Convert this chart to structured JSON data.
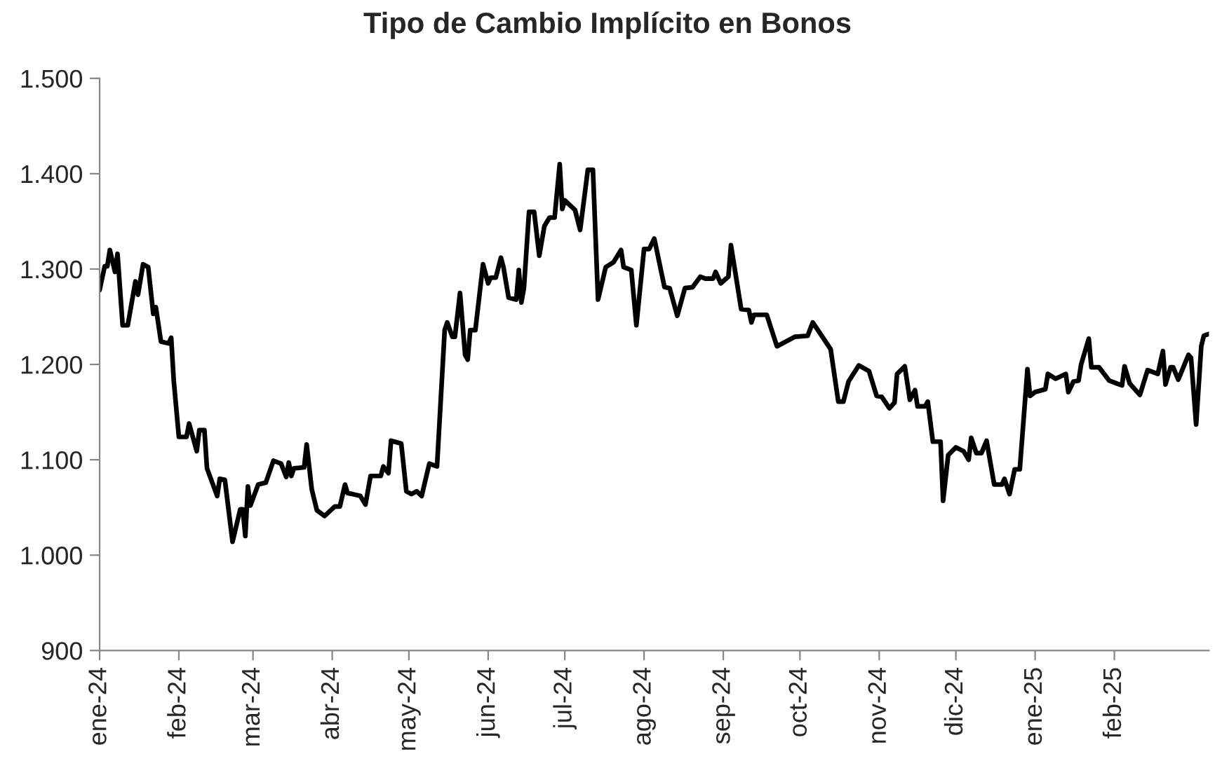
{
  "chart_data": {
    "type": "line",
    "title": "Tipo de Cambio Implícito en Bonos",
    "x": [
      "2024-01-01",
      "2024-01-03",
      "2024-01-04",
      "2024-01-05",
      "2024-01-07",
      "2024-01-08",
      "2024-01-10",
      "2024-01-12",
      "2024-01-15",
      "2024-01-16",
      "2024-01-18",
      "2024-01-20",
      "2024-01-22",
      "2024-01-23",
      "2024-01-25",
      "2024-01-28",
      "2024-01-29",
      "2024-01-30",
      "2024-02-01",
      "2024-02-04",
      "2024-02-05",
      "2024-02-08",
      "2024-02-09",
      "2024-02-11",
      "2024-02-12",
      "2024-02-16",
      "2024-02-17",
      "2024-02-19",
      "2024-02-22",
      "2024-02-25",
      "2024-02-26",
      "2024-02-27",
      "2024-02-28",
      "2024-02-29",
      "2024-03-03",
      "2024-03-06",
      "2024-03-09",
      "2024-03-12",
      "2024-03-14",
      "2024-03-15",
      "2024-03-16",
      "2024-03-17",
      "2024-03-21",
      "2024-03-22",
      "2024-03-24",
      "2024-03-26",
      "2024-03-29",
      "2024-04-02",
      "2024-04-04",
      "2024-04-06",
      "2024-04-07",
      "2024-04-09",
      "2024-04-12",
      "2024-04-14",
      "2024-04-16",
      "2024-04-20",
      "2024-04-21",
      "2024-04-23",
      "2024-04-24",
      "2024-04-28",
      "2024-04-30",
      "2024-05-02",
      "2024-05-04",
      "2024-05-06",
      "2024-05-09",
      "2024-05-12",
      "2024-05-15",
      "2024-05-16",
      "2024-05-18",
      "2024-05-19",
      "2024-05-21",
      "2024-05-23",
      "2024-05-24",
      "2024-05-25",
      "2024-05-27",
      "2024-05-30",
      "2024-06-01",
      "2024-06-02",
      "2024-06-04",
      "2024-06-06",
      "2024-06-07",
      "2024-06-09",
      "2024-06-12",
      "2024-06-13",
      "2024-06-14",
      "2024-06-15",
      "2024-06-17",
      "2024-06-19",
      "2024-06-21",
      "2024-06-23",
      "2024-06-25",
      "2024-06-27",
      "2024-06-29",
      "2024-06-30",
      "2024-07-01",
      "2024-07-05",
      "2024-07-07",
      "2024-07-10",
      "2024-07-12",
      "2024-07-14",
      "2024-07-17",
      "2024-07-20",
      "2024-07-23",
      "2024-07-24",
      "2024-07-27",
      "2024-07-29",
      "2024-08-01",
      "2024-08-03",
      "2024-08-05",
      "2024-08-09",
      "2024-08-11",
      "2024-08-14",
      "2024-08-17",
      "2024-08-20",
      "2024-08-23",
      "2024-08-25",
      "2024-08-28",
      "2024-08-29",
      "2024-08-31",
      "2024-09-03",
      "2024-09-04",
      "2024-09-08",
      "2024-09-11",
      "2024-09-12",
      "2024-09-13",
      "2024-09-18",
      "2024-09-22",
      "2024-09-29",
      "2024-10-04",
      "2024-10-06",
      "2024-10-10",
      "2024-10-13",
      "2024-10-16",
      "2024-10-18",
      "2024-10-20",
      "2024-10-24",
      "2024-10-28",
      "2024-10-31",
      "2024-11-02",
      "2024-11-05",
      "2024-11-07",
      "2024-11-08",
      "2024-11-11",
      "2024-11-13",
      "2024-11-15",
      "2024-11-16",
      "2024-11-19",
      "2024-11-20",
      "2024-11-22",
      "2024-11-25",
      "2024-11-26",
      "2024-11-28",
      "2024-12-01",
      "2024-12-04",
      "2024-12-06",
      "2024-12-07",
      "2024-12-09",
      "2024-12-11",
      "2024-12-13",
      "2024-12-16",
      "2024-12-19",
      "2024-12-20",
      "2024-12-22",
      "2024-12-24",
      "2024-12-26",
      "2024-12-29",
      "2024-12-30",
      "2025-01-01",
      "2025-01-05",
      "2025-01-06",
      "2025-01-09",
      "2025-01-13",
      "2025-01-14",
      "2025-01-16",
      "2025-01-18",
      "2025-01-19",
      "2025-01-22",
      "2025-01-23",
      "2025-01-26",
      "2025-01-30",
      "2025-02-02",
      "2025-02-04",
      "2025-02-05",
      "2025-02-07",
      "2025-02-11",
      "2025-02-14",
      "2025-02-18",
      "2025-02-20",
      "2025-02-21",
      "2025-02-23",
      "2025-02-24",
      "2025-02-26",
      "2025-03-02",
      "2025-03-03",
      "2025-03-05",
      "2025-03-07",
      "2025-03-08",
      "2025-03-10"
    ],
    "series": [
      {
        "color": "#000000",
        "values": [
          1278,
          1303,
          1303,
          1320,
          1297,
          1316,
          1241,
          1241,
          1287,
          1273,
          1305,
          1302,
          1253,
          1260,
          1224,
          1222,
          1228,
          1183,
          1124,
          1124,
          1138,
          1109,
          1131,
          1131,
          1091,
          1062,
          1080,
          1079,
          1014,
          1048,
          1048,
          1020,
          1072,
          1052,
          1074,
          1076,
          1099,
          1096,
          1082,
          1097,
          1083,
          1091,
          1092,
          1116,
          1069,
          1047,
          1041,
          1051,
          1051,
          1074,
          1065,
          1064,
          1062,
          1053,
          1083,
          1083,
          1093,
          1086,
          1120,
          1117,
          1067,
          1064,
          1067,
          1062,
          1096,
          1093,
          1236,
          1244,
          1229,
          1229,
          1275,
          1210,
          1205,
          1236,
          1236,
          1305,
          1285,
          1291,
          1291,
          1312,
          1302,
          1270,
          1268,
          1299,
          1265,
          1280,
          1360,
          1360,
          1314,
          1345,
          1354,
          1354,
          1410,
          1363,
          1372,
          1362,
          1341,
          1404,
          1404,
          1268,
          1302,
          1307,
          1320,
          1302,
          1299,
          1241,
          1321,
          1321,
          1332,
          1281,
          1280,
          1251,
          1280,
          1281,
          1292,
          1290,
          1290,
          1297,
          1285,
          1292,
          1325,
          1258,
          1257,
          1244,
          1252,
          1252,
          1219,
          1229,
          1230,
          1244,
          1228,
          1216,
          1161,
          1161,
          1182,
          1199,
          1193,
          1167,
          1166,
          1154,
          1160,
          1190,
          1198,
          1163,
          1173,
          1156,
          1156,
          1161,
          1119,
          1119,
          1057,
          1105,
          1113,
          1109,
          1100,
          1123,
          1107,
          1107,
          1120,
          1074,
          1074,
          1080,
          1064,
          1090,
          1090,
          1195,
          1167,
          1171,
          1174,
          1190,
          1185,
          1190,
          1171,
          1182,
          1183,
          1200,
          1227,
          1197,
          1197,
          1183,
          1180,
          1178,
          1198,
          1180,
          1168,
          1194,
          1190,
          1214,
          1179,
          1197,
          1197,
          1184,
          1210,
          1207,
          1137,
          1219,
          1230,
          1232
        ]
      }
    ],
    "xlim": [
      "2024-01-01",
      "2025-03-10"
    ],
    "xticks": [
      {
        "value": "2024-01-01",
        "label": "ene-24"
      },
      {
        "value": "2024-02-01",
        "label": "feb-24"
      },
      {
        "value": "2024-03-01",
        "label": "mar-24"
      },
      {
        "value": "2024-04-01",
        "label": "abr-24"
      },
      {
        "value": "2024-05-01",
        "label": "may-24"
      },
      {
        "value": "2024-06-01",
        "label": "jun-24"
      },
      {
        "value": "2024-07-01",
        "label": "jul-24"
      },
      {
        "value": "2024-08-01",
        "label": "ago-24"
      },
      {
        "value": "2024-09-01",
        "label": "sep-24"
      },
      {
        "value": "2024-10-01",
        "label": "oct-24"
      },
      {
        "value": "2024-11-01",
        "label": "nov-24"
      },
      {
        "value": "2024-12-01",
        "label": "dic-24"
      },
      {
        "value": "2025-01-01",
        "label": "ene-25"
      },
      {
        "value": "2025-02-01",
        "label": "feb-25"
      }
    ],
    "ylim": [
      900,
      1500
    ],
    "yticks": [
      900,
      {
        "value": 1000,
        "label": "1.000"
      },
      {
        "value": 1100,
        "label": "1.100"
      },
      {
        "value": 1200,
        "label": "1.200"
      },
      {
        "value": 1300,
        "label": "1.300"
      },
      {
        "value": 1400,
        "label": "1.400"
      },
      {
        "value": 1500,
        "label": "1.500"
      }
    ],
    "grid": false,
    "marker": "none",
    "line_style": "solid"
  }
}
